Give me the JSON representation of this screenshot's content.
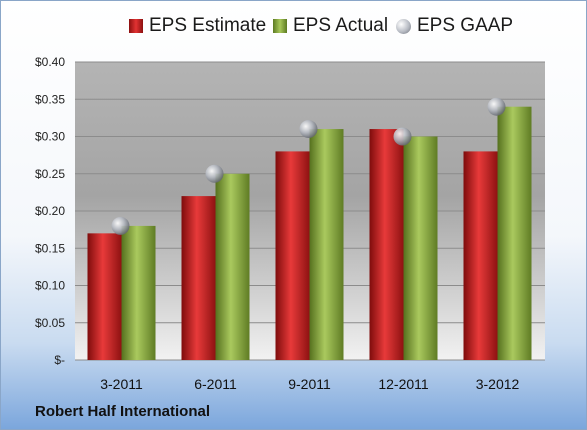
{
  "company": "Robert Half International",
  "chart_data": {
    "type": "bar",
    "categories": [
      "3-2011",
      "6-2011",
      "9-2011",
      "12-2011",
      "3-2012"
    ],
    "series": [
      {
        "name": "EPS Estimate",
        "values": [
          0.17,
          0.22,
          0.28,
          0.31,
          0.28
        ],
        "color": "#c81e1e"
      },
      {
        "name": "EPS Actual",
        "values": [
          0.18,
          0.25,
          0.31,
          0.3,
          0.34
        ],
        "color": "#8bae3c"
      },
      {
        "name": "EPS GAAP",
        "kind": "marker",
        "values": [
          0.18,
          0.25,
          0.31,
          0.3,
          0.34
        ],
        "color": "#b8bcc4"
      }
    ],
    "ylim": [
      0,
      0.4
    ],
    "yticks": [
      0,
      0.05,
      0.1,
      0.15,
      0.2,
      0.25,
      0.3,
      0.35,
      0.4
    ],
    "ytick_labels": [
      "$-",
      "$0.05",
      "$0.10",
      "$0.15",
      "$0.20",
      "$0.25",
      "$0.30",
      "$0.35",
      "$0.40"
    ],
    "grid": true,
    "legend_position": "top"
  }
}
